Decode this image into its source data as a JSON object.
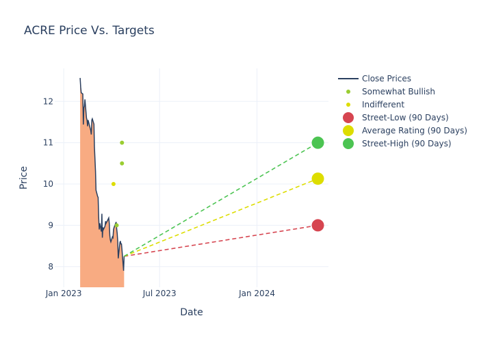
{
  "chart_data": {
    "type": "line",
    "title": "ACRE Price Vs. Targets",
    "xlabel": "Date",
    "ylabel": "Price",
    "x_range": [
      "2022-12-15",
      "2024-05-15"
    ],
    "y_range": [
      7.5,
      12.8
    ],
    "x_ticks": [
      {
        "date": "2023-01-01",
        "label": "Jan 2023"
      },
      {
        "date": "2023-07-01",
        "label": "Jul 2023"
      },
      {
        "date": "2024-01-01",
        "label": "Jan 2024"
      }
    ],
    "y_ticks": [
      8,
      9,
      10,
      11,
      12
    ],
    "grid": true,
    "legend_position": "right",
    "colors": {
      "close": "#2a3f5f",
      "area": "#f8ab82",
      "somewhat_bullish": "#9acd32",
      "indifferent": "#dddd00",
      "street_low": "#d64550",
      "average": "#dddd00",
      "street_high": "#4cc452"
    },
    "series": [
      {
        "name": "Close Prices",
        "points": [
          [
            "2023-02-01",
            12.57
          ],
          [
            "2023-02-02",
            12.35
          ],
          [
            "2023-02-03",
            12.21
          ],
          [
            "2023-02-06",
            12.18
          ],
          [
            "2023-02-07",
            11.44
          ],
          [
            "2023-02-08",
            11.85
          ],
          [
            "2023-02-09",
            11.88
          ],
          [
            "2023-02-10",
            12.05
          ],
          [
            "2023-02-13",
            11.6
          ],
          [
            "2023-02-14",
            11.55
          ],
          [
            "2023-02-15",
            11.4
          ],
          [
            "2023-02-16",
            11.55
          ],
          [
            "2023-02-17",
            11.5
          ],
          [
            "2023-02-21",
            11.3
          ],
          [
            "2023-02-22",
            11.2
          ],
          [
            "2023-02-23",
            11.55
          ],
          [
            "2023-02-24",
            11.58
          ],
          [
            "2023-02-27",
            11.45
          ],
          [
            "2023-02-28",
            10.9
          ],
          [
            "2023-03-01",
            10.6
          ],
          [
            "2023-03-02",
            10.3
          ],
          [
            "2023-03-03",
            9.85
          ],
          [
            "2023-03-06",
            9.7
          ],
          [
            "2023-03-07",
            9.68
          ],
          [
            "2023-03-08",
            9.2
          ],
          [
            "2023-03-09",
            8.9
          ],
          [
            "2023-03-10",
            9.05
          ],
          [
            "2023-03-13",
            8.85
          ],
          [
            "2023-03-14",
            9.28
          ],
          [
            "2023-03-15",
            8.7
          ],
          [
            "2023-03-16",
            8.95
          ],
          [
            "2023-03-17",
            8.9
          ],
          [
            "2023-03-20",
            8.98
          ],
          [
            "2023-03-21",
            9.1
          ],
          [
            "2023-03-22",
            9.05
          ],
          [
            "2023-03-23",
            9.08
          ],
          [
            "2023-03-24",
            9.1
          ],
          [
            "2023-03-27",
            9.18
          ],
          [
            "2023-03-28",
            9.05
          ],
          [
            "2023-03-29",
            8.75
          ],
          [
            "2023-03-30",
            8.65
          ],
          [
            "2023-03-31",
            8.6
          ],
          [
            "2023-04-03",
            8.72
          ],
          [
            "2023-04-04",
            8.7
          ],
          [
            "2023-04-05",
            8.9
          ],
          [
            "2023-04-06",
            8.95
          ],
          [
            "2023-04-10",
            9.08
          ],
          [
            "2023-04-11",
            8.92
          ],
          [
            "2023-04-12",
            8.8
          ],
          [
            "2023-04-13",
            8.6
          ],
          [
            "2023-04-14",
            8.2
          ],
          [
            "2023-04-17",
            8.58
          ],
          [
            "2023-04-18",
            8.62
          ],
          [
            "2023-04-19",
            8.55
          ],
          [
            "2023-04-20",
            8.55
          ],
          [
            "2023-04-21",
            8.4
          ],
          [
            "2023-04-24",
            7.9
          ],
          [
            "2023-04-25",
            8.25
          ]
        ]
      }
    ],
    "analyst_ratings": [
      {
        "name": "Somewhat Bullish",
        "points": [
          [
            "2023-04-21",
            11.0
          ],
          [
            "2023-04-21",
            10.5
          ],
          [
            "2023-04-11",
            9.0
          ]
        ]
      },
      {
        "name": "Indifferent",
        "points": [
          [
            "2023-04-05",
            10.0
          ]
        ]
      }
    ],
    "price_targets": {
      "start": {
        "date": "2023-04-25",
        "value": 8.25
      },
      "end_date": "2024-04-25",
      "targets": [
        {
          "name": "Street-Low (90 Days)",
          "value": 9.0
        },
        {
          "name": "Average Rating (90 Days)",
          "value": 10.13
        },
        {
          "name": "Street-High (90 Days)",
          "value": 11.0
        }
      ]
    },
    "legend": [
      "Close Prices",
      "Somewhat Bullish",
      "Indifferent",
      "Street-Low (90 Days)",
      "Average Rating (90 Days)",
      "Street-High (90 Days)"
    ]
  }
}
